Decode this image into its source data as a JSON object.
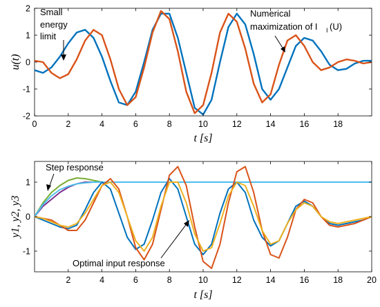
{
  "chart_data": [
    {
      "type": "line",
      "ylabel": "u(t)",
      "xlabel": "t [s]",
      "xlim": [
        0,
        20
      ],
      "ylim": [
        -2,
        2
      ],
      "xticks": [
        "0",
        "2",
        "4",
        "6",
        "8",
        "10",
        "12",
        "14",
        "16",
        "18"
      ],
      "yticks": [
        "2",
        "1",
        "0",
        "-1",
        "-2"
      ],
      "grid": false,
      "annotations": [
        {
          "lines": [
            "Small",
            "energy",
            "limit"
          ]
        },
        {
          "lines": [
            "Numerical",
            "maximization of I",
            "(U)"
          ],
          "subscript": "I"
        }
      ],
      "series": [
        {
          "color": "#0072BD",
          "x": [
            0,
            0.5,
            1,
            1.5,
            2,
            2.5,
            3,
            3.5,
            4,
            4.5,
            5,
            5.5,
            6,
            6.5,
            7,
            7.5,
            8,
            8.5,
            9,
            9.5,
            10,
            10.5,
            11,
            11.5,
            12,
            12.5,
            13,
            13.5,
            14,
            14.5,
            15,
            15.5,
            16,
            16.5,
            17,
            17.5,
            18,
            18.5,
            19,
            19.5,
            20
          ],
          "y": [
            -0.3,
            -0.4,
            -0.2,
            0.2,
            0.7,
            1.1,
            1.2,
            0.9,
            0.2,
            -0.7,
            -1.5,
            -1.6,
            -1.1,
            0,
            1.2,
            1.8,
            1.8,
            0.9,
            -0.4,
            -1.7,
            -1.95,
            -1.4,
            0,
            1.3,
            1.8,
            1.4,
            0.3,
            -1,
            -1.4,
            -1,
            -0.2,
            0.6,
            0.9,
            0.8,
            0.4,
            -0.1,
            -0.3,
            -0.25,
            -0.05,
            0.05,
            0.05
          ]
        },
        {
          "color": "#D95319",
          "x": [
            0,
            0.5,
            1,
            1.5,
            2,
            2.5,
            3,
            3.5,
            4,
            4.5,
            5,
            5.5,
            6,
            6.5,
            7,
            7.5,
            8,
            8.5,
            9,
            9.5,
            10,
            10.5,
            11,
            11.5,
            12,
            12.5,
            13,
            13.5,
            14,
            14.5,
            15,
            15.5,
            16,
            16.5,
            17,
            17.5,
            18,
            18.5,
            19,
            19.5,
            20
          ],
          "y": [
            0.05,
            0,
            -0.4,
            -0.6,
            -0.45,
            0.1,
            0.8,
            1.2,
            1,
            0.1,
            -1,
            -1.6,
            -1.3,
            -0.2,
            1.1,
            1.9,
            1.6,
            0.4,
            -1.1,
            -1.9,
            -1.6,
            -0.4,
            1.1,
            1.8,
            1.5,
            0.5,
            -0.8,
            -1.5,
            -1.2,
            -0.1,
            0.8,
            1,
            0.6,
            0,
            -0.3,
            -0.2,
            0,
            0.1,
            0.05,
            -0.05,
            0
          ]
        }
      ]
    },
    {
      "type": "line",
      "ylabel": "y1, y2, y3",
      "xlabel": "t [s]",
      "xlim": [
        0,
        20
      ],
      "ylim": [
        -1.6,
        1.6
      ],
      "xticks": [
        "2",
        "4",
        "6",
        "8",
        "10",
        "12",
        "14",
        "16",
        "18",
        "20"
      ],
      "yticks": [
        "1",
        "0",
        "-1"
      ],
      "grid": false,
      "annotations": [
        {
          "text": "Step response"
        },
        {
          "text": "Optimal input response"
        }
      ],
      "series": [
        {
          "color": "#7E2F8E",
          "x": [
            0,
            0.5,
            1,
            1.5,
            2,
            2.5,
            3,
            3.5,
            4
          ],
          "y": [
            0,
            0.3,
            0.5,
            0.7,
            0.85,
            0.95,
            1,
            1,
            1
          ]
        },
        {
          "color": "#77AC30",
          "x": [
            0,
            0.5,
            1,
            1.5,
            2,
            2.5,
            3,
            3.5,
            4
          ],
          "y": [
            0,
            0.4,
            0.7,
            0.9,
            1.05,
            1.12,
            1.1,
            1.05,
            1
          ]
        },
        {
          "color": "#4DBEEE",
          "x": [
            0,
            0.5,
            1,
            1.5,
            2,
            2.5,
            3,
            3.5,
            4,
            4.5,
            5,
            5.5,
            6,
            6.5,
            7,
            7.5,
            8,
            8.5,
            9,
            9.5,
            10,
            10.5,
            11,
            11.5,
            12,
            12.5,
            13,
            13.5,
            14,
            14.5,
            15,
            15.5,
            16,
            16.5,
            17,
            17.5,
            18,
            18.5,
            19,
            19.5,
            20
          ],
          "y": [
            0,
            0.35,
            0.6,
            0.78,
            0.88,
            0.95,
            0.98,
            1,
            1,
            1,
            1,
            1,
            1,
            1,
            1,
            1,
            1,
            1,
            1,
            1,
            1,
            1,
            1,
            1,
            1,
            1,
            1,
            1,
            1,
            1,
            1,
            1,
            1,
            1,
            1,
            1,
            1,
            1,
            1,
            1,
            1
          ]
        },
        {
          "color": "#0072BD",
          "x": [
            0,
            0.5,
            1,
            1.5,
            2,
            2.5,
            3,
            3.5,
            4,
            4.5,
            5,
            5.5,
            6,
            6.5,
            7,
            7.5,
            8,
            8.5,
            9,
            9.5,
            10,
            10.5,
            11,
            11.5,
            12,
            12.5,
            13,
            13.5,
            14,
            14.5,
            15,
            15.5,
            16,
            16.5,
            17,
            17.5,
            18,
            18.5,
            19,
            19.5,
            20
          ],
          "y": [
            0,
            -0.1,
            -0.2,
            -0.3,
            -0.35,
            -0.25,
            0.2,
            0.7,
            1,
            0.8,
            0.1,
            -0.6,
            -0.95,
            -0.8,
            -0.1,
            0.7,
            1.1,
            0.8,
            0,
            -0.8,
            -1.1,
            -0.8,
            0.1,
            0.8,
            1,
            0.7,
            -0.1,
            -0.6,
            -0.85,
            -0.7,
            -0.2,
            0.3,
            0.45,
            0.3,
            0,
            -0.2,
            -0.25,
            -0.2,
            -0.15,
            -0.1,
            0
          ]
        },
        {
          "color": "#D95319",
          "x": [
            0,
            0.5,
            1,
            1.5,
            2,
            2.5,
            3,
            3.5,
            4,
            4.5,
            5,
            5.5,
            6,
            6.5,
            7,
            7.5,
            8,
            8.5,
            9,
            9.5,
            10,
            10.5,
            11,
            11.5,
            12,
            12.5,
            13,
            13.5,
            14,
            14.5,
            15,
            15.5,
            16,
            16.5,
            17,
            17.5,
            18,
            18.5,
            19,
            19.5,
            20
          ],
          "y": [
            0,
            -0.05,
            -0.1,
            -0.25,
            -0.4,
            -0.4,
            -0.1,
            0.4,
            0.9,
            1.1,
            0.8,
            0,
            -0.9,
            -1.25,
            -0.8,
            0.2,
            1.2,
            1.45,
            0.9,
            -0.3,
            -1.3,
            -1.5,
            -0.8,
            0.4,
            1.3,
            1.45,
            0.7,
            -0.4,
            -1.1,
            -1.2,
            -0.6,
            0.2,
            0.5,
            0.4,
            0,
            -0.25,
            -0.3,
            -0.25,
            -0.2,
            -0.1,
            0
          ]
        },
        {
          "color": "#EDB120",
          "x": [
            0,
            0.5,
            1,
            1.5,
            2,
            2.5,
            3,
            3.5,
            4,
            4.5,
            5,
            5.5,
            6,
            6.5,
            7,
            7.5,
            8,
            8.5,
            9,
            9.5,
            10,
            10.5,
            11,
            11.5,
            12,
            12.5,
            13,
            13.5,
            14,
            14.5,
            15,
            15.5,
            16,
            16.5,
            17,
            17.5,
            18,
            18.5,
            19,
            19.5,
            20
          ],
          "y": [
            0,
            -0.05,
            -0.15,
            -0.25,
            -0.3,
            -0.2,
            0.1,
            0.5,
            0.9,
            1,
            0.7,
            0,
            -0.7,
            -1,
            -0.6,
            0.3,
            1,
            1,
            0.4,
            -0.5,
            -1,
            -0.9,
            -0.2,
            0.6,
            1,
            0.9,
            0.3,
            -0.4,
            -0.8,
            -0.7,
            -0.2,
            0.2,
            0.4,
            0.3,
            0,
            -0.15,
            -0.2,
            -0.15,
            -0.1,
            -0.05,
            0
          ]
        }
      ]
    }
  ]
}
